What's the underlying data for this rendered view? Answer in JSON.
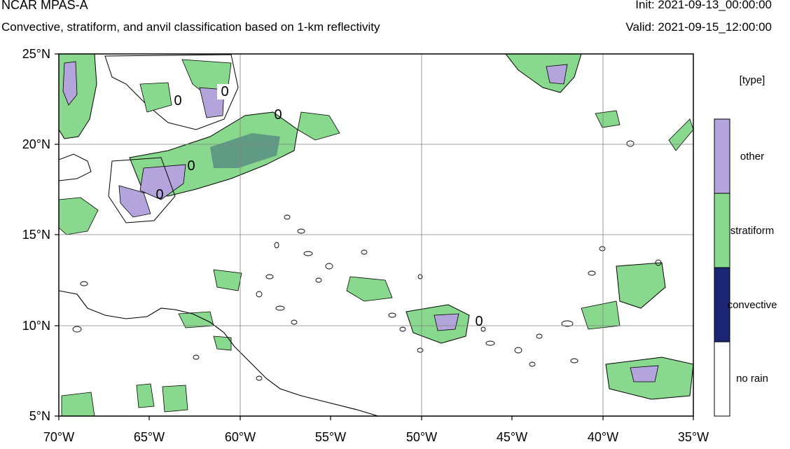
{
  "header": {
    "title": "NCAR MPAS-A",
    "subtitle": "Convective, stratiform, and anvil classification based on 1-km reflectivity",
    "init": "Init: 2021-09-13_00:00:00",
    "valid": "Valid: 2021-09-15_12:00:00"
  },
  "map": {
    "lon_range": [
      -70,
      -35
    ],
    "lat_range": [
      5,
      25
    ],
    "lon_ticks": [
      "70°W",
      "65°W",
      "60°W",
      "55°W",
      "50°W",
      "45°W",
      "40°W",
      "35°W"
    ],
    "lat_ticks": [
      "5°N",
      "10°N",
      "15°N",
      "20°N",
      "25°N"
    ],
    "zero_labels": [
      "0",
      "0",
      "0",
      "0",
      "0",
      "0"
    ],
    "grid": true
  },
  "legend": {
    "title": "[type]",
    "items": [
      {
        "label": "other",
        "color": "#b3a4dc"
      },
      {
        "label": "stratiform",
        "color": "#88d98e"
      },
      {
        "label": "convective",
        "color": "#1b2573"
      },
      {
        "label": "no rain",
        "color": "#ffffff"
      }
    ]
  }
}
